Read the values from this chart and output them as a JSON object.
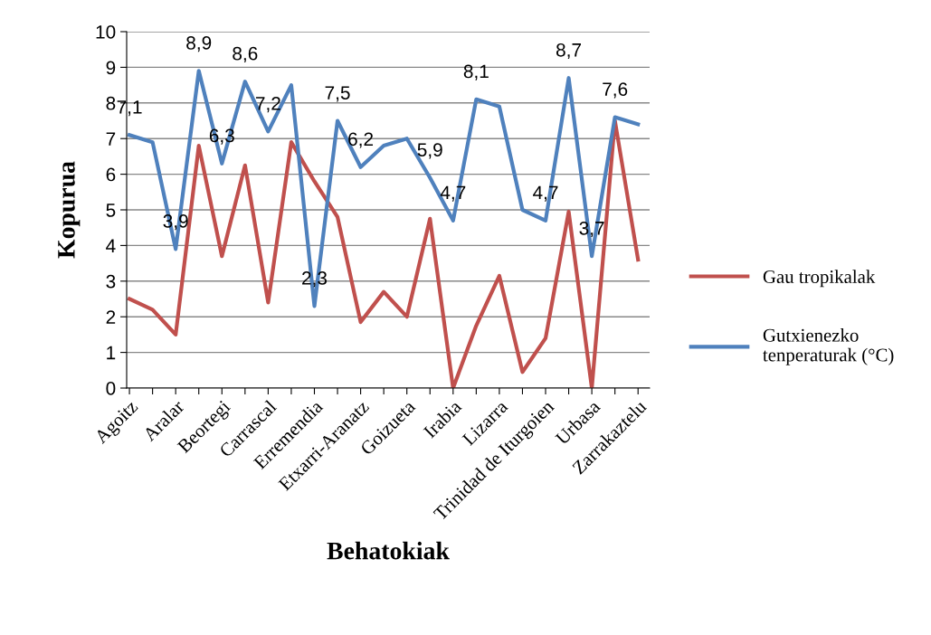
{
  "chart_data": {
    "type": "line",
    "xlabel": "Behatokiak",
    "ylabel": "Kopurua",
    "categories": [
      "Agoitz",
      null,
      "Aralar",
      null,
      "Beortegi",
      null,
      "Carrascal",
      null,
      "Erremendia",
      null,
      "Etxarri-Aranatz",
      null,
      "Goizueta",
      null,
      "Irabia",
      null,
      "Lizarra",
      null,
      "Trinidad de Iturgoien",
      null,
      "Urbasa",
      null,
      "Zarrakaztelu"
    ],
    "series": [
      {
        "name": "Gau tropikalak",
        "color": "#c0504d",
        "values": [
          2.5,
          2.2,
          1.5,
          6.8,
          3.7,
          6.25,
          2.4,
          6.9,
          5.8,
          4.8,
          1.85,
          2.7,
          2.0,
          4.75,
          0,
          1.75,
          3.15,
          0.45,
          1.4,
          4.95,
          0,
          7.5,
          3.6
        ]
      },
      {
        "name": "Gutxienezko tenperaturak (°C)",
        "color": "#4f81bd",
        "values": [
          7.1,
          6.9,
          3.9,
          8.9,
          6.3,
          8.6,
          7.2,
          8.5,
          2.3,
          7.5,
          6.2,
          6.8,
          7.0,
          5.9,
          4.7,
          8.1,
          7.9,
          5.0,
          4.7,
          8.7,
          3.7,
          7.6,
          7.4
        ],
        "value_labels": [
          "7,1",
          null,
          "3,9",
          "8,9",
          "6,3",
          "8,6",
          "7,2",
          null,
          "2,3",
          "7,5",
          "6,2",
          null,
          null,
          "5,9",
          "4,7",
          "8,1",
          null,
          null,
          "4,7",
          "8,7",
          "3,7",
          "7,6",
          null
        ]
      }
    ],
    "ylim": [
      0,
      10
    ],
    "yticks": [
      0,
      1,
      2,
      3,
      4,
      5,
      6,
      7,
      8,
      9,
      10
    ],
    "grid": "y",
    "legend": "right",
    "marker": "none",
    "line_style": "solid"
  }
}
